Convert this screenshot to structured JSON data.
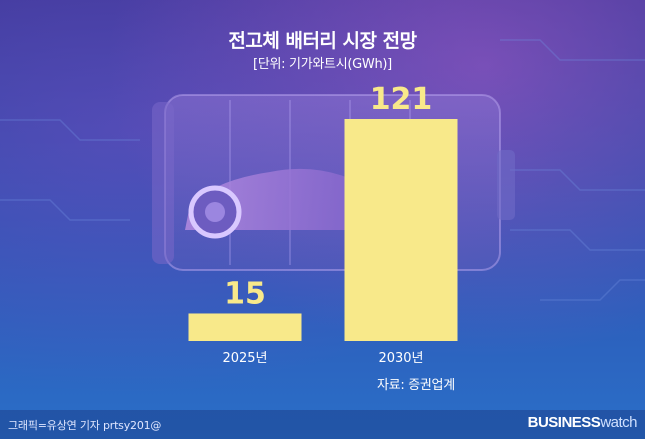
{
  "header": {
    "title": "전고체 배터리 시장 전망",
    "unit": "[단위: 기가와트시(GWh)]"
  },
  "source": "자료: 증권업계",
  "footer": {
    "credit": "그래픽=유상연 기자 prtsy201@",
    "brand_bold": "BUSINESS",
    "brand_light": "watch"
  },
  "colors": {
    "bar": "#f8e98a",
    "value_label": "#f8e98a"
  },
  "chart_data": {
    "type": "bar",
    "title": "전고체 배터리 시장 전망",
    "ylabel": "[단위: 기가와트시(GWh)]",
    "categories": [
      "2025년",
      "2030년"
    ],
    "values": [
      15,
      121
    ],
    "data_labels": [
      "15",
      "121"
    ],
    "ylim": [
      0,
      121
    ]
  }
}
